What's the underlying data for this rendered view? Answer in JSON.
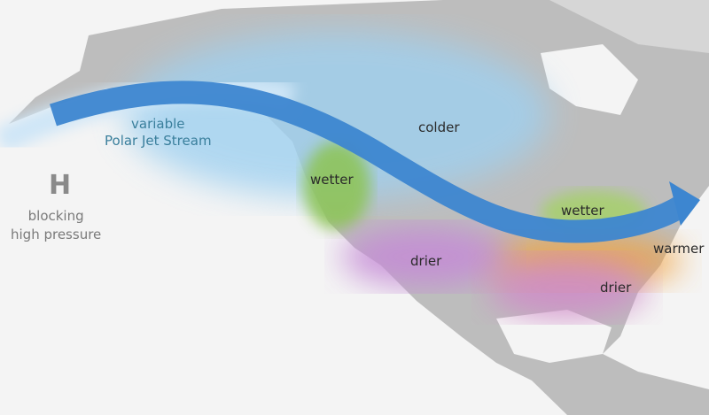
{
  "colors": {
    "ocean": "#f4f4f4",
    "land": "#b8b8b8",
    "jet_stream": "#3d86d0",
    "colder": "#9fd0f0",
    "wetter": "#8ec45a",
    "drier": "#c58ad6",
    "warmer": "#f2a23c"
  },
  "jet_label": {
    "line1": "variable",
    "line2": "Polar Jet Stream"
  },
  "high": {
    "symbol": "H",
    "line1": "blocking",
    "line2": "high pressure"
  },
  "regions": {
    "colder": "colder",
    "wetter_west": "wetter",
    "wetter_east": "wetter",
    "drier_west": "drier",
    "drier_east": "drier",
    "warmer": "warmer"
  }
}
